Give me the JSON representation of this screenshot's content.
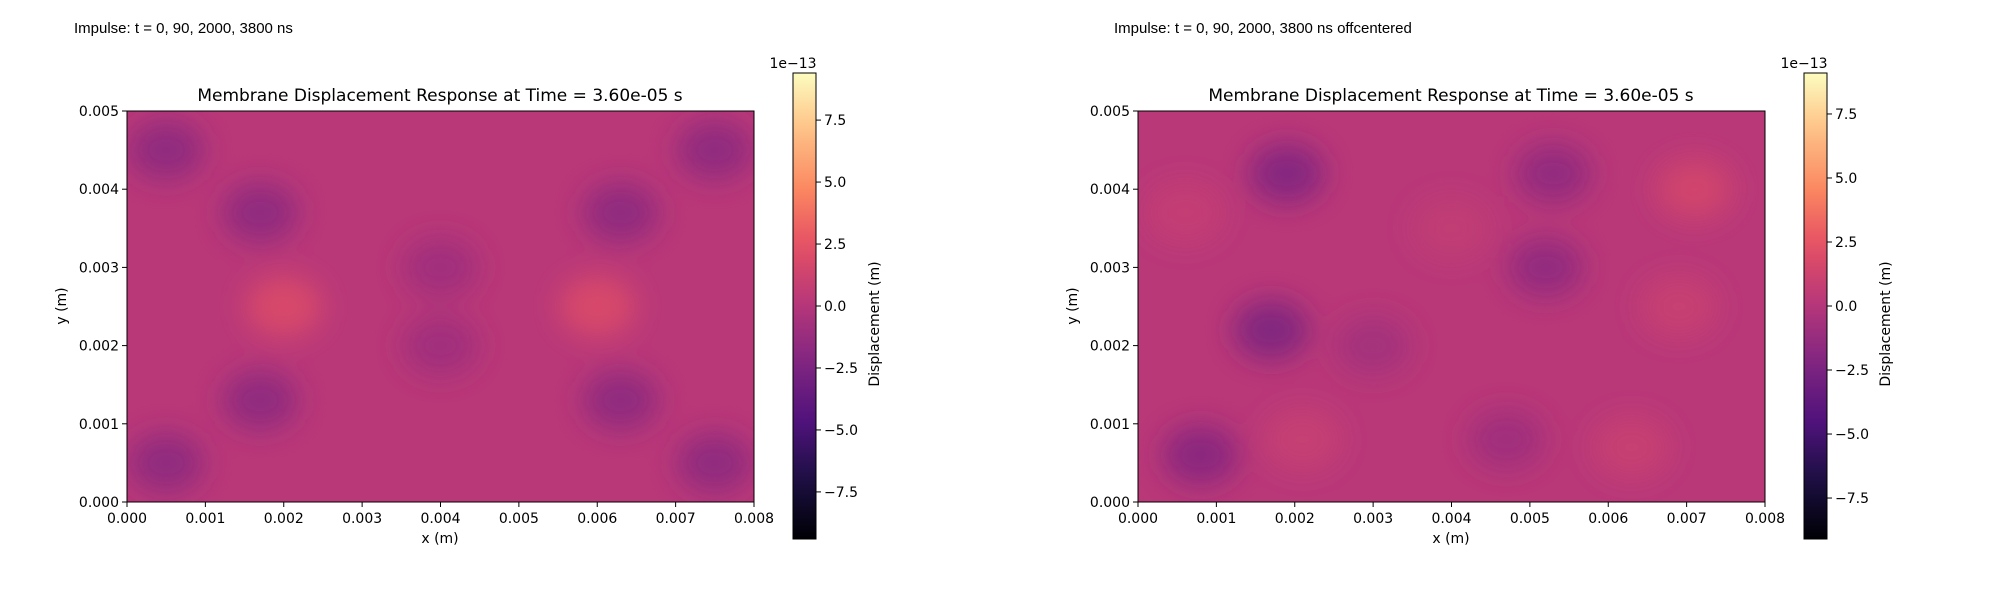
{
  "panels": [
    {
      "caption": "Impulse: t = 0, 90, 2000, 3800 ns",
      "title": "Membrane Displacement Response at Time = 3.60e-05 s",
      "xlabel": "x (m)",
      "ylabel": "y (m)",
      "cbar_label": "Displacement (m)",
      "cbar_exponent": "1e−13"
    },
    {
      "caption": "Impulse: t = 0, 90, 2000, 3800 ns offcentered",
      "title": "Membrane Displacement Response at Time = 3.60e-05 s",
      "xlabel": "x (m)",
      "ylabel": "y (m)",
      "cbar_label": "Displacement (m)",
      "cbar_exponent": "1e−13"
    }
  ],
  "chart_data": [
    {
      "type": "heatmap",
      "title": "Membrane Displacement Response at Time = 3.60e-05 s",
      "xlabel": "x (m)",
      "ylabel": "y (m)",
      "xlim": [
        0,
        0.008
      ],
      "ylim": [
        0,
        0.005
      ],
      "xticks": [
        "0.000",
        "0.001",
        "0.002",
        "0.003",
        "0.004",
        "0.005",
        "0.006",
        "0.007",
        "0.008"
      ],
      "yticks": [
        "0.000",
        "0.001",
        "0.002",
        "0.003",
        "0.004",
        "0.005"
      ],
      "colormap": "magma",
      "colorbar": {
        "label": "Displacement (m)",
        "range": [
          -9.4,
          9.4
        ],
        "ticks": [
          7.5,
          5.0,
          2.5,
          0.0,
          -2.5,
          -5.0,
          -7.5
        ],
        "tick_labels": [
          "7.5",
          "5.0",
          "2.5",
          "0.0",
          "−2.5",
          "−5.0",
          "−7.5"
        ],
        "scale_exponent": -13
      },
      "baseline_value": 0.2,
      "features": [
        {
          "x": 0.0005,
          "y": 0.0045,
          "value": -1.8
        },
        {
          "x": 0.0017,
          "y": 0.0037,
          "value": -1.8
        },
        {
          "x": 0.0017,
          "y": 0.0013,
          "value": -1.8
        },
        {
          "x": 0.0005,
          "y": 0.0005,
          "value": -1.8
        },
        {
          "x": 0.0063,
          "y": 0.0037,
          "value": -1.8
        },
        {
          "x": 0.0063,
          "y": 0.0013,
          "value": -1.8
        },
        {
          "x": 0.0075,
          "y": 0.0045,
          "value": -1.8
        },
        {
          "x": 0.0075,
          "y": 0.0005,
          "value": -1.8
        },
        {
          "x": 0.004,
          "y": 0.003,
          "value": -1.0
        },
        {
          "x": 0.004,
          "y": 0.002,
          "value": -1.0
        },
        {
          "x": 0.002,
          "y": 0.0025,
          "value": 2.0
        },
        {
          "x": 0.006,
          "y": 0.0025,
          "value": 2.0
        }
      ]
    },
    {
      "type": "heatmap",
      "title": "Membrane Displacement Response at Time = 3.60e-05 s",
      "xlabel": "x (m)",
      "ylabel": "y (m)",
      "xlim": [
        0,
        0.008
      ],
      "ylim": [
        0,
        0.005
      ],
      "xticks": [
        "0.000",
        "0.001",
        "0.002",
        "0.003",
        "0.004",
        "0.005",
        "0.006",
        "0.007",
        "0.008"
      ],
      "yticks": [
        "0.000",
        "0.001",
        "0.002",
        "0.003",
        "0.004",
        "0.005"
      ],
      "colormap": "magma",
      "colorbar": {
        "label": "Displacement (m)",
        "range": [
          -9.1,
          9.1
        ],
        "ticks": [
          7.5,
          5.0,
          2.5,
          0.0,
          -2.5,
          -5.0,
          -7.5
        ],
        "tick_labels": [
          "7.5",
          "5.0",
          "2.5",
          "0.0",
          "−2.5",
          "−5.0",
          "−7.5"
        ],
        "scale_exponent": -13
      },
      "baseline_value": 0.2,
      "features": [
        {
          "x": 0.0019,
          "y": 0.0042,
          "value": -2.2
        },
        {
          "x": 0.0017,
          "y": 0.0022,
          "value": -2.4
        },
        {
          "x": 0.0008,
          "y": 0.0006,
          "value": -2.0
        },
        {
          "x": 0.0053,
          "y": 0.0042,
          "value": -1.6
        },
        {
          "x": 0.0052,
          "y": 0.003,
          "value": -1.6
        },
        {
          "x": 0.0047,
          "y": 0.0008,
          "value": -1.0
        },
        {
          "x": 0.003,
          "y": 0.002,
          "value": -0.8
        },
        {
          "x": 0.0071,
          "y": 0.004,
          "value": 1.5
        },
        {
          "x": 0.0069,
          "y": 0.0025,
          "value": 1.0
        },
        {
          "x": 0.0063,
          "y": 0.0007,
          "value": 1.0
        },
        {
          "x": 0.0021,
          "y": 0.0008,
          "value": 0.9
        },
        {
          "x": 0.0006,
          "y": 0.0037,
          "value": 0.8
        },
        {
          "x": 0.004,
          "y": 0.0035,
          "value": 0.6
        }
      ]
    }
  ]
}
